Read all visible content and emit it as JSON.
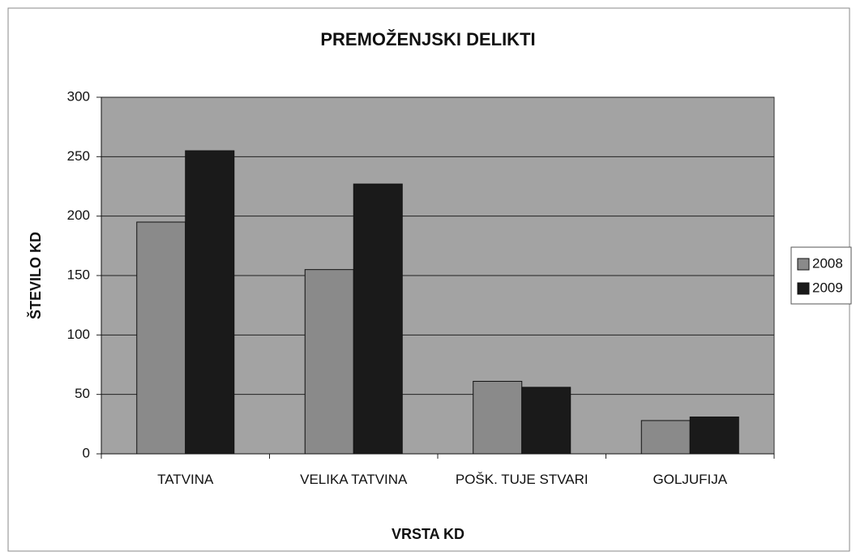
{
  "chart_data": {
    "type": "bar",
    "title": "PREMOŽENJSKI DELIKTI",
    "x_label": "VRSTA KD",
    "y_label": "ŠTEVILO KD",
    "categories": [
      "TATVINA",
      "VELIKA TATVINA",
      "POŠK. TUJE STVARI",
      "GOLJUFIJA"
    ],
    "series": [
      {
        "name": "2008",
        "color": "#8a8a8a",
        "values": [
          195,
          155,
          61,
          28
        ]
      },
      {
        "name": "2009",
        "color": "#1a1a1a",
        "values": [
          255,
          227,
          56,
          31
        ]
      }
    ],
    "ylim": [
      0,
      300
    ],
    "yticks": [
      0,
      50,
      100,
      150,
      200,
      250,
      300
    ],
    "grid": true,
    "legend": "right"
  }
}
